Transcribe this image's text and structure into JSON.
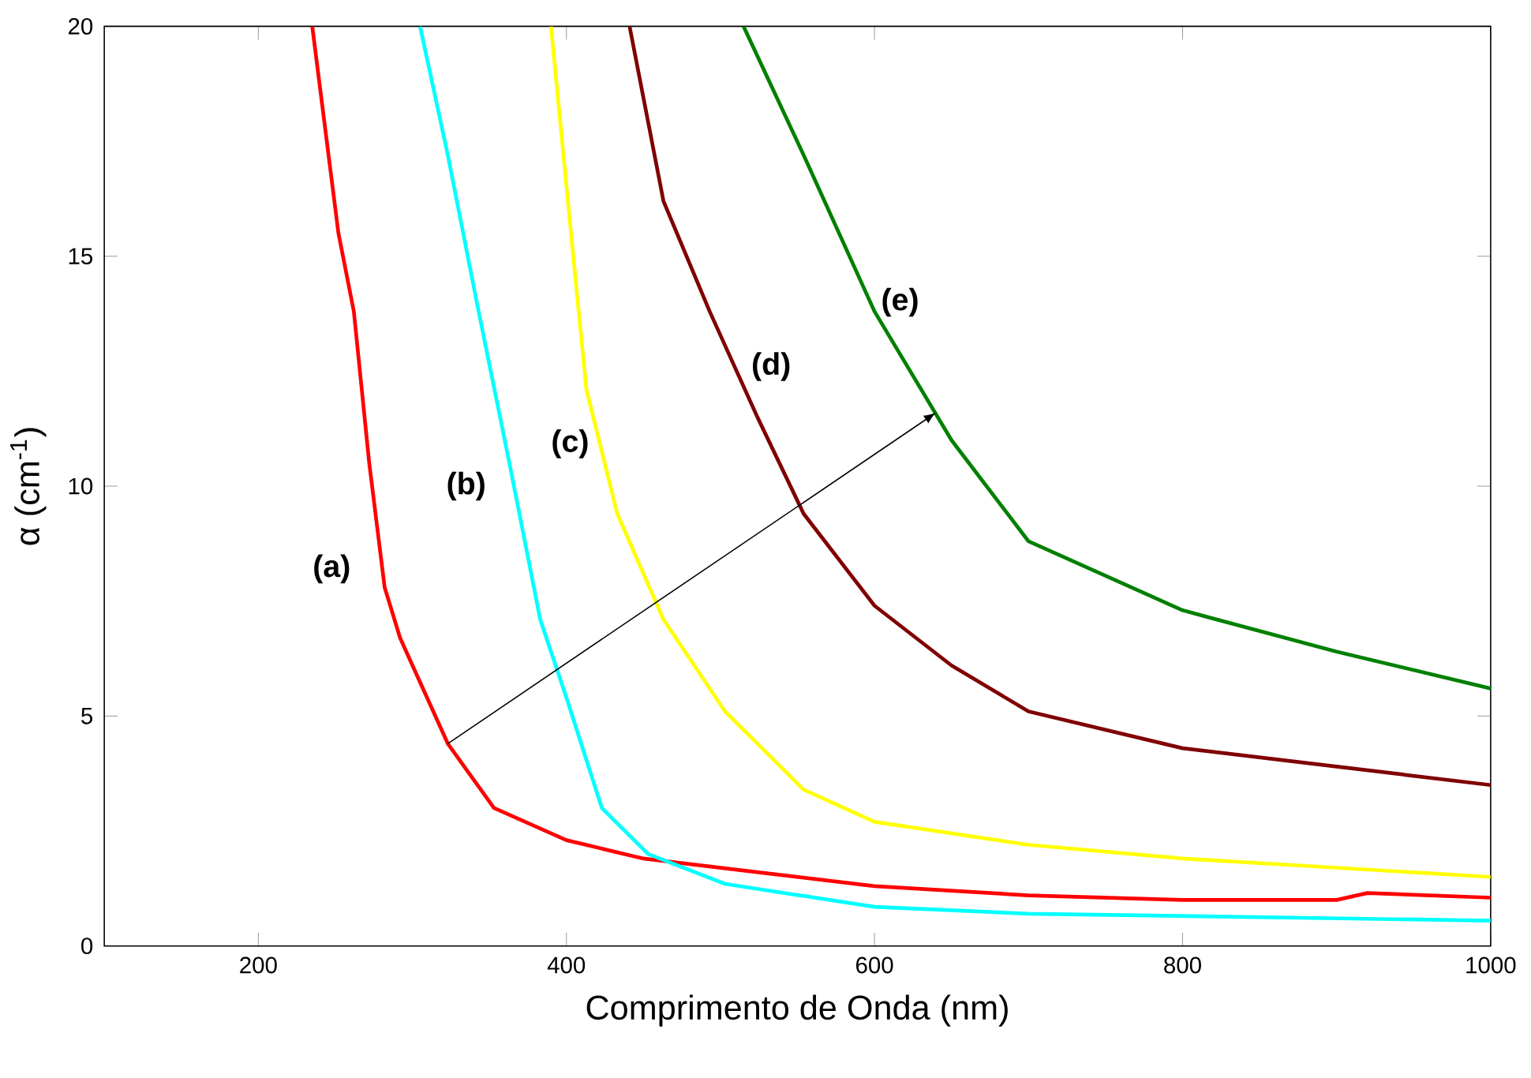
{
  "chart_data": {
    "type": "line",
    "xlabel": "Comprimento de Onda (nm)",
    "ylabel": "α (cm$^{-1}$)",
    "xlim": [
      100,
      1000
    ],
    "ylim": [
      0,
      20
    ],
    "xticks": [
      200,
      400,
      600,
      800,
      1000
    ],
    "yticks": [
      0,
      5,
      10,
      15,
      20
    ],
    "grid": false,
    "series": [
      {
        "color": "#ff0000",
        "x": [
          235,
          252,
          262,
          272,
          282,
          292,
          323,
          353,
          400,
          450,
          500,
          600,
          700,
          800,
          900,
          920,
          1000
        ],
        "values": [
          20,
          15.5,
          13.8,
          10.5,
          7.8,
          6.7,
          4.4,
          3.0,
          2.3,
          1.9,
          1.7,
          1.3,
          1.1,
          1.0,
          1.0,
          1.15,
          1.05
        ]
      },
      {
        "color": "#00ffff",
        "x": [
          305,
          323,
          343,
          363,
          383,
          400,
          423,
          453,
          503,
          600,
          700,
          800,
          900,
          1000
        ],
        "values": [
          20,
          17.2,
          13.8,
          10.5,
          7.1,
          5.4,
          3.0,
          2.0,
          1.35,
          0.85,
          0.7,
          0.65,
          0.6,
          0.55
        ]
      },
      {
        "color": "#ffff00",
        "x": [
          390,
          403,
          413,
          433,
          463,
          503,
          554,
          600,
          700,
          800,
          900,
          1000
        ],
        "values": [
          20,
          15.5,
          12.1,
          9.4,
          7.1,
          5.1,
          3.4,
          2.7,
          2.2,
          1.9,
          1.7,
          1.5
        ]
      },
      {
        "color": "#800000",
        "x": [
          441,
          463,
          493,
          524,
          554,
          600,
          650,
          700,
          800,
          900,
          1000
        ],
        "values": [
          20,
          16.2,
          13.8,
          11.5,
          9.4,
          7.4,
          6.1,
          5.1,
          4.3,
          3.9,
          3.5
        ]
      },
      {
        "color": "#008000",
        "x": [
          515,
          554,
          600,
          650,
          700,
          800,
          900,
          1000
        ],
        "values": [
          20,
          17.2,
          13.8,
          11.0,
          8.8,
          7.3,
          6.4,
          5.6
        ]
      }
    ],
    "annotations": [
      "(a)",
      "(b)",
      "(c)",
      "(d)",
      "(e)"
    ]
  }
}
